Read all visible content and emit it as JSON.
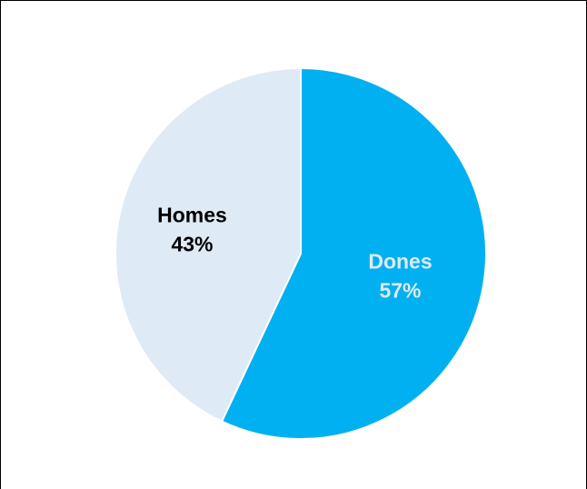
{
  "chart_data": {
    "type": "pie",
    "title": "",
    "slices": [
      {
        "label": "Dones",
        "value": 57,
        "value_label": "57%",
        "color": "#00B0F0",
        "label_color": "#DEEAF6"
      },
      {
        "label": "Homes",
        "value": 43,
        "value_label": "43%",
        "color": "#DEEAF6",
        "label_color": "#000000"
      }
    ],
    "start": "12 o'clock, clockwise",
    "legend": "none",
    "slice_border_color": "#ffffff",
    "frame_border_color": "#000000"
  }
}
